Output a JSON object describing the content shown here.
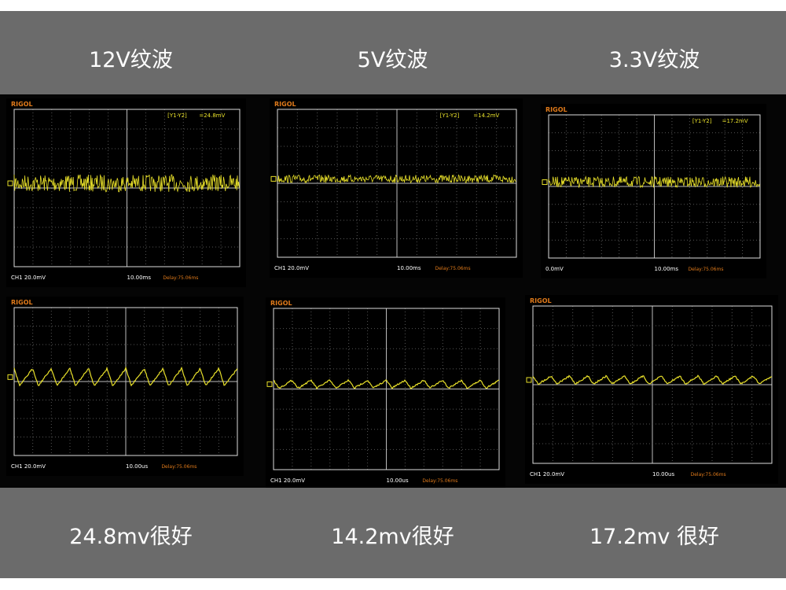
{
  "header": {
    "labels": [
      "12V纹波",
      "5V纹波",
      "3.3V纹波"
    ]
  },
  "scopes": [
    {
      "brand": "RIGOL",
      "cursor_label": "[Y1-Y2]",
      "cursor_value": "=24.8mV",
      "channel": "CH1 20.0mV",
      "timebase": "10.00ms",
      "delay": "Delay:75.06ms"
    },
    {
      "brand": "RIGOL",
      "cursor_label": "[Y1-Y2]",
      "cursor_value": "=14.2mV",
      "channel": "CH1 20.0mV",
      "timebase": "10.00ms",
      "delay": "Delay:75.06ms"
    },
    {
      "brand": "RIGOL",
      "cursor_label": "[Y1-Y2]",
      "cursor_value": "=17.2mV",
      "channel": "0.0mV",
      "timebase": "10.00ms",
      "delay": "Delay:75.06ms"
    },
    {
      "brand": "RIGOL",
      "channel": "CH1 20.0mV",
      "timebase": "10.00us",
      "delay": "Delay:75.06ms"
    },
    {
      "brand": "RIGOL",
      "channel": "CH1 20.0mV",
      "timebase": "10.00us",
      "delay": "Delay:75.06ms"
    },
    {
      "brand": "RIGOL",
      "channel": "CH1 20.0mV",
      "timebase": "10.00us",
      "delay": "Delay:75.06ms"
    }
  ],
  "footer": {
    "labels": [
      "24.8mv很好",
      "14.2mv很好",
      "17.2mv 很好"
    ]
  }
}
